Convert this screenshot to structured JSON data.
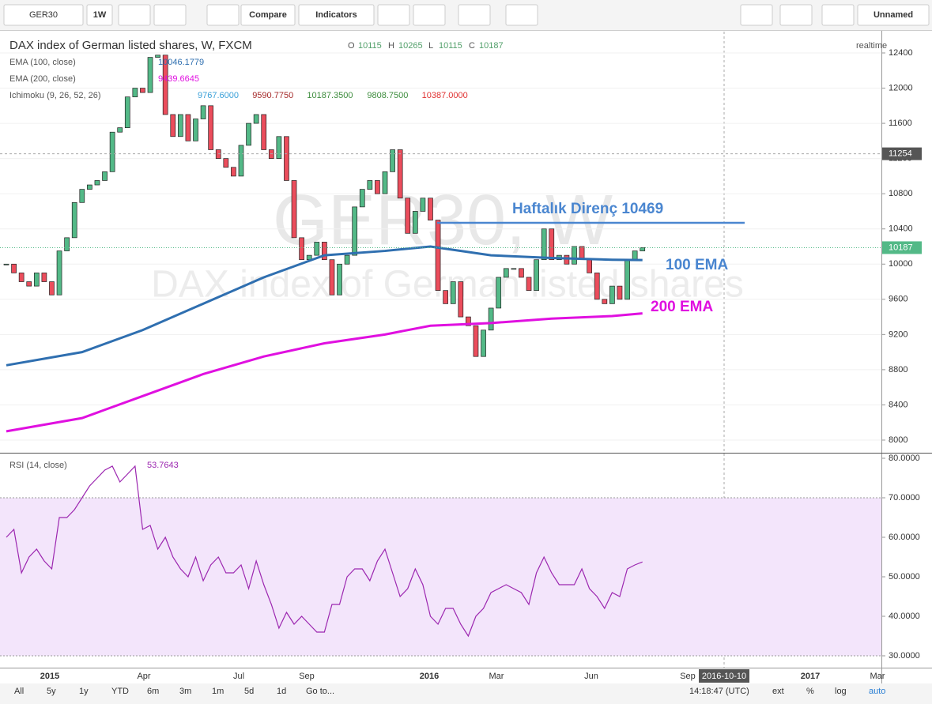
{
  "toolbar": {
    "symbol": "GER30",
    "interval": "1W",
    "buttons": [
      "Compare",
      "Indicators"
    ],
    "layout": "Unnamed"
  },
  "legend": {
    "title": "DAX index of German listed shares, W, FXCM",
    "ohlc": [
      {
        "label": "O",
        "value": "10115"
      },
      {
        "label": "H",
        "value": "10265"
      },
      {
        "label": "L",
        "value": "10115"
      },
      {
        "label": "C",
        "value": "10187"
      }
    ],
    "realtime": "realtime",
    "studies": [
      {
        "name": "EMA (100, close)",
        "values": [
          "10046.1779"
        ],
        "colors": [
          "#2f6fb0"
        ]
      },
      {
        "name": "EMA (200, close)",
        "values": [
          "9439.6645"
        ],
        "colors": [
          "#e010e0"
        ]
      },
      {
        "name": "Ichimoku (9, 26, 52, 26)",
        "values": [
          "9767.6000",
          "9590.7750",
          "10187.3500",
          "9808.7500",
          "10387.0000"
        ],
        "colors": [
          "#3aa0d8",
          "#a52a2a",
          "#3c8c3c",
          "#3c8c3c",
          "#e03030"
        ]
      }
    ]
  },
  "chart": {
    "watermark": [
      "GER30, W",
      "DAX index of German listed shares"
    ],
    "price_ticks": [
      12400,
      12000,
      11600,
      11200,
      10800,
      10400,
      10000,
      9600,
      9200,
      8800,
      8400,
      8000
    ],
    "crosshair_price": 11254,
    "last_price": 10187,
    "closes": [
      10000,
      9900,
      9800,
      9750,
      9900,
      9800,
      9650,
      10150,
      10300,
      10700,
      10850,
      10900,
      10950,
      11050,
      11500,
      11550,
      11900,
      12000,
      11950,
      12350,
      12375,
      11700,
      11450,
      11700,
      11400,
      11650,
      11800,
      11300,
      11200,
      11100,
      11000,
      11350,
      11600,
      11700,
      11300,
      11200,
      11450,
      10950,
      10300,
      10050,
      10100,
      10250,
      10050,
      9650,
      10000,
      10100,
      10650,
      10850,
      10950,
      10800,
      11050,
      11300,
      10750,
      10350,
      10600,
      10750,
      10500,
      9700,
      9550,
      9800,
      9400,
      9300,
      8950,
      9250,
      9500,
      9850,
      9950,
      9950,
      9850,
      9700,
      10050,
      10400,
      10050,
      10100,
      10000,
      10200,
      10050,
      9900,
      9600,
      9550,
      9750,
      9600,
      10050,
      10150,
      10187
    ],
    "ema100": {
      "index": [
        0,
        10,
        18,
        26,
        34,
        42,
        50,
        56,
        64,
        72,
        80,
        84
      ],
      "values": [
        8850,
        9000,
        9250,
        9550,
        9850,
        10100,
        10150,
        10200,
        10100,
        10070,
        10050,
        10046.1779
      ]
    },
    "ema200": {
      "index": [
        0,
        10,
        18,
        26,
        34,
        42,
        50,
        56,
        64,
        72,
        80,
        84
      ],
      "values": [
        8100,
        8250,
        8500,
        8750,
        8950,
        9100,
        9200,
        9300,
        9330,
        9380,
        9410,
        9439.6645
      ]
    },
    "resistance": 10469,
    "annotations": [
      "Haftalık Direnç 10469",
      "100 EMA",
      "200 EMA"
    ],
    "time_labels": [
      "2015",
      "Apr",
      "Jul",
      "Sep",
      "2016",
      "Mar",
      "Jun",
      "Sep",
      "2016-10-10",
      "2017",
      "Mar"
    ]
  },
  "rsi": {
    "label": "RSI (14, close)",
    "last": "53.7643",
    "ticks": [
      {
        "value": 80,
        "label": "80.0000"
      },
      {
        "value": 70,
        "label": "70.0000"
      },
      {
        "value": 60,
        "label": "60.0000"
      },
      {
        "value": 50,
        "label": "50.0000"
      },
      {
        "value": 40,
        "label": "40.0000"
      },
      {
        "value": 30,
        "label": "30.0000"
      }
    ],
    "values": [
      60,
      62,
      51,
      55,
      57,
      54,
      52,
      65,
      65,
      67,
      70,
      73,
      75,
      77,
      78,
      74,
      76,
      78,
      62,
      63,
      57,
      60,
      55,
      52,
      50,
      55,
      49,
      53,
      55,
      51,
      51,
      53,
      47,
      54,
      48,
      43,
      37,
      41,
      38,
      40,
      38,
      36,
      36,
      43,
      43,
      50,
      52,
      52,
      49,
      54,
      57,
      51,
      45,
      47,
      52,
      48,
      40,
      38,
      42,
      42,
      38,
      35,
      40,
      42,
      46,
      47,
      48,
      47,
      46,
      43,
      51,
      55,
      51,
      48,
      48,
      48,
      52,
      47,
      45,
      42,
      46,
      45,
      52,
      53,
      53.7643
    ]
  },
  "bottom_bar": {
    "ranges": [
      "All",
      "5y",
      "1y",
      "YTD",
      "6m",
      "3m",
      "1m",
      "5d",
      "1d"
    ],
    "goto": "Go to...",
    "clock": "14:18:47 (UTC)",
    "options": [
      "ext",
      "%",
      "log",
      "auto"
    ]
  }
}
